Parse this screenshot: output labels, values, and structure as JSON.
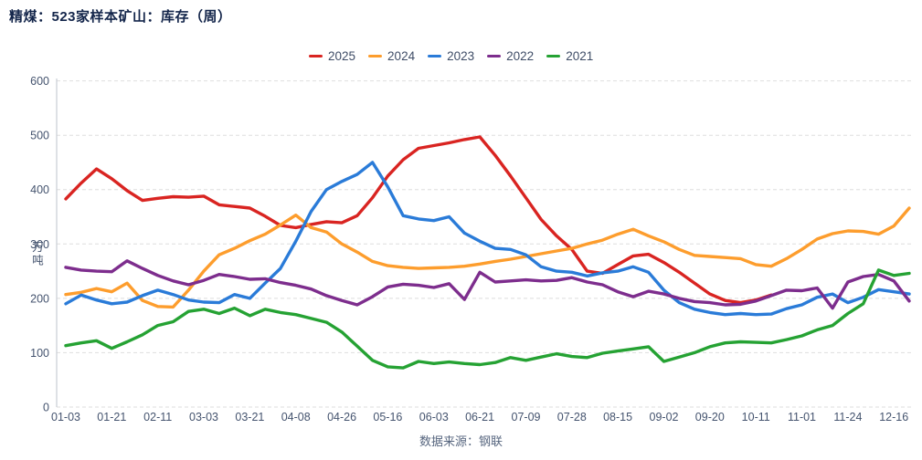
{
  "header": {
    "title": "精煤：523家样本矿山：库存（周）"
  },
  "axes": {
    "y_label": "万吨"
  },
  "footer": {
    "source": "数据来源：钢联"
  },
  "chart_data": {
    "type": "line",
    "title": "精煤：523家样本矿山：库存（周）",
    "ylabel": "万吨",
    "xlabel": "",
    "ylim": [
      0,
      600
    ],
    "yticks": [
      0,
      100,
      200,
      300,
      400,
      500,
      600
    ],
    "grid": "horizontal-dashed",
    "legend_position": "top",
    "n_points": 56,
    "label_step": 3,
    "x_labels": [
      "01-03",
      "01-21",
      "02-11",
      "03-03",
      "03-21",
      "04-08",
      "04-26",
      "05-16",
      "06-03",
      "06-21",
      "07-09",
      "07-28",
      "08-15",
      "09-02",
      "09-20",
      "10-11",
      "11-01",
      "11-24",
      "12-16"
    ],
    "series": [
      {
        "name": "2025",
        "color": "#d92421",
        "values": [
          383,
          412,
          438,
          420,
          398,
          380,
          384,
          387,
          386,
          388,
          372,
          369,
          366,
          351,
          334,
          330,
          336,
          341,
          339,
          352,
          385,
          425,
          455,
          476,
          481,
          486,
          492,
          497,
          463,
          425,
          385,
          345,
          315,
          290,
          250,
          246,
          262,
          278,
          281,
          266,
          248,
          228,
          208,
          196,
          192,
          197,
          206
        ]
      },
      {
        "name": "2024",
        "color": "#fd9d2d",
        "values": [
          207,
          211,
          218,
          212,
          228,
          196,
          185,
          184,
          215,
          250,
          280,
          292,
          306,
          318,
          335,
          353,
          330,
          322,
          300,
          285,
          268,
          260,
          257,
          255,
          256,
          257,
          259,
          263,
          268,
          272,
          277,
          282,
          287,
          292,
          300,
          307,
          318,
          327,
          315,
          304,
          290,
          279,
          277,
          275,
          273,
          262,
          259,
          273,
          290,
          309,
          319,
          324,
          323,
          318,
          333,
          366
        ]
      },
      {
        "name": "2023",
        "color": "#2a7bd8",
        "values": [
          190,
          206,
          197,
          190,
          193,
          205,
          215,
          207,
          197,
          193,
          192,
          207,
          200,
          228,
          255,
          305,
          360,
          400,
          415,
          428,
          450,
          405,
          352,
          346,
          343,
          350,
          320,
          305,
          292,
          290,
          280,
          258,
          250,
          248,
          241,
          247,
          250,
          258,
          248,
          215,
          192,
          180,
          174,
          170,
          172,
          170,
          171,
          181,
          188,
          202,
          208,
          192,
          202,
          216,
          212,
          208
        ]
      },
      {
        "name": "2022",
        "color": "#7d2d8d",
        "values": [
          257,
          252,
          250,
          249,
          269,
          255,
          242,
          232,
          225,
          233,
          244,
          240,
          235,
          236,
          229,
          224,
          217,
          205,
          196,
          188,
          203,
          221,
          226,
          224,
          220,
          227,
          198,
          248,
          230,
          232,
          234,
          232,
          233,
          238,
          230,
          225,
          212,
          203,
          213,
          208,
          200,
          194,
          192,
          188,
          189,
          195,
          205,
          215,
          214,
          219,
          182,
          230,
          240,
          244,
          232,
          195
        ]
      },
      {
        "name": "2021",
        "color": "#25a233",
        "values": [
          113,
          118,
          122,
          108,
          120,
          133,
          150,
          157,
          176,
          180,
          172,
          182,
          168,
          180,
          174,
          170,
          163,
          156,
          138,
          112,
          86,
          74,
          72,
          84,
          80,
          83,
          80,
          78,
          82,
          91,
          86,
          92,
          98,
          93,
          91,
          99,
          103,
          107,
          111,
          84,
          92,
          100,
          111,
          118,
          120,
          119,
          118,
          124,
          131,
          142,
          150,
          172,
          190,
          252,
          242,
          246
        ]
      }
    ]
  }
}
